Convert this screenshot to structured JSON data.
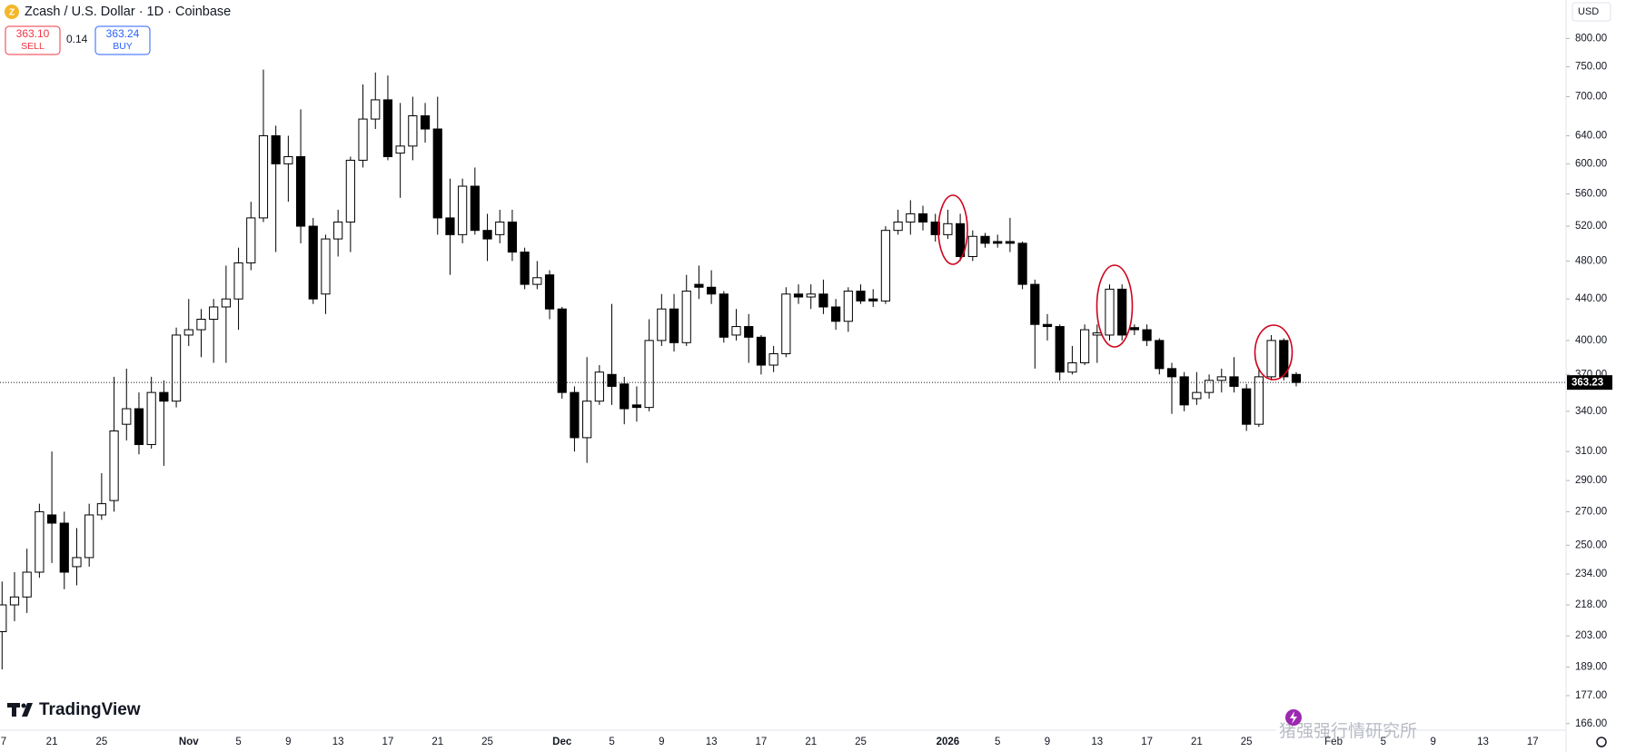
{
  "header": {
    "title": "Zcash / U.S. Dollar · 1D · Coinbase",
    "sell_price": "363.10",
    "sell_label": "SELL",
    "spread": "0.14",
    "buy_price": "363.24",
    "buy_label": "BUY",
    "currency": "USD"
  },
  "branding": {
    "logo_text": "TradingView",
    "watermark": "猪强强行情研究所"
  },
  "chart_data": {
    "type": "candlestick",
    "log_scale": true,
    "grid": false,
    "colors": {
      "up": "#ffffff",
      "down": "#000000",
      "border": "#000000"
    },
    "ylim": [
      163.5,
      874
    ],
    "yticks": [
      {
        "value": 800,
        "label": "800.00"
      },
      {
        "value": 750,
        "label": "750.00"
      },
      {
        "value": 700,
        "label": "700.00"
      },
      {
        "value": 640,
        "label": "640.00"
      },
      {
        "value": 600,
        "label": "600.00"
      },
      {
        "value": 560,
        "label": "560.00"
      },
      {
        "value": 520,
        "label": "520.00"
      },
      {
        "value": 480,
        "label": "480.00"
      },
      {
        "value": 440,
        "label": "440.00"
      },
      {
        "value": 400,
        "label": "400.00"
      },
      {
        "value": 370,
        "label": "370.00"
      },
      {
        "value": 340,
        "label": "340.00"
      },
      {
        "value": 310,
        "label": "310.00"
      },
      {
        "value": 290,
        "label": "290.00"
      },
      {
        "value": 270,
        "label": "270.00"
      },
      {
        "value": 250,
        "label": "250.00"
      },
      {
        "value": 234,
        "label": "234.00"
      },
      {
        "value": 218,
        "label": "218.00"
      },
      {
        "value": 203,
        "label": "203.00"
      },
      {
        "value": 189,
        "label": "189.00"
      },
      {
        "value": 177,
        "label": "177.00"
      },
      {
        "value": 166,
        "label": "166.00"
      }
    ],
    "last_price": 363.23,
    "categories": [
      "7",
      null,
      null,
      null,
      "21",
      null,
      null,
      null,
      "25",
      null,
      null,
      null,
      null,
      null,
      null,
      "Nov",
      null,
      null,
      null,
      "5",
      null,
      null,
      null,
      "9",
      null,
      null,
      null,
      "13",
      null,
      null,
      null,
      "17",
      null,
      null,
      null,
      "21",
      null,
      null,
      null,
      "25",
      null,
      null,
      null,
      null,
      null,
      "Dec",
      null,
      null,
      null,
      "5",
      null,
      null,
      null,
      "9",
      null,
      null,
      null,
      "13",
      null,
      null,
      null,
      "17",
      null,
      null,
      null,
      "21",
      null,
      null,
      null,
      "25",
      null,
      null,
      null,
      null,
      null,
      null,
      "2026",
      null,
      null,
      null,
      "5",
      null,
      null,
      null,
      "9",
      null,
      null,
      null,
      "13",
      null,
      null,
      null,
      "17",
      null,
      null,
      null,
      "21",
      null,
      null,
      null,
      "25",
      null,
      null,
      null,
      null
    ],
    "future_labels": [
      "Feb",
      "5",
      "9",
      "13",
      "17"
    ],
    "open": [
      205,
      218,
      222,
      235,
      268,
      263,
      238,
      243,
      268,
      277,
      330,
      342,
      315,
      355,
      348,
      405,
      410,
      420,
      432,
      440,
      478,
      530,
      640,
      600,
      610,
      520,
      445,
      505,
      525,
      605,
      665,
      695,
      615,
      625,
      670,
      650,
      530,
      510,
      570,
      515,
      510,
      525,
      490,
      455,
      465,
      430,
      355,
      320,
      348,
      370,
      362,
      345,
      343,
      400,
      430,
      398,
      455,
      452,
      445,
      405,
      413,
      403,
      378,
      388,
      445,
      442,
      445,
      432,
      418,
      448,
      440,
      438,
      515,
      525,
      535,
      525,
      510,
      523,
      485,
      508,
      502,
      502,
      500,
      455,
      415,
      413,
      372,
      380,
      405,
      405,
      450,
      412,
      410,
      400,
      375,
      368,
      350,
      355,
      365,
      368,
      358,
      330,
      368,
      400,
      370
    ],
    "high": [
      230,
      235,
      248,
      275,
      310,
      270,
      260,
      275,
      295,
      368,
      375,
      355,
      368,
      365,
      412,
      440,
      430,
      440,
      475,
      495,
      550,
      745,
      655,
      640,
      680,
      530,
      510,
      540,
      610,
      720,
      740,
      735,
      690,
      700,
      690,
      700,
      580,
      580,
      595,
      535,
      540,
      540,
      495,
      480,
      470,
      432,
      360,
      385,
      378,
      435,
      368,
      360,
      420,
      445,
      445,
      465,
      475,
      470,
      448,
      430,
      425,
      405,
      395,
      452,
      455,
      455,
      460,
      440,
      452,
      455,
      450,
      520,
      540,
      552,
      545,
      535,
      540,
      535,
      515,
      512,
      510,
      530,
      502,
      460,
      425,
      415,
      395,
      415,
      415,
      455,
      455,
      415,
      415,
      402,
      380,
      372,
      372,
      370,
      375,
      385,
      362,
      375,
      405,
      402,
      372
    ],
    "low": [
      188,
      210,
      214,
      232,
      240,
      226,
      228,
      238,
      265,
      270,
      318,
      308,
      312,
      300,
      343,
      395,
      385,
      380,
      380,
      410,
      470,
      525,
      490,
      550,
      500,
      435,
      425,
      485,
      490,
      595,
      650,
      605,
      555,
      605,
      630,
      510,
      465,
      500,
      510,
      480,
      500,
      480,
      450,
      450,
      420,
      350,
      310,
      302,
      345,
      345,
      330,
      332,
      340,
      395,
      390,
      395,
      440,
      435,
      398,
      400,
      380,
      370,
      372,
      385,
      435,
      430,
      425,
      410,
      408,
      435,
      432,
      435,
      510,
      510,
      515,
      502,
      505,
      480,
      480,
      495,
      495,
      490,
      450,
      375,
      400,
      365,
      370,
      378,
      380,
      400,
      400,
      405,
      395,
      370,
      338,
      340,
      345,
      350,
      355,
      355,
      325,
      328,
      365,
      365,
      360
    ],
    "close": [
      218,
      222,
      235,
      270,
      263,
      235,
      243,
      268,
      275,
      325,
      342,
      315,
      355,
      348,
      405,
      410,
      420,
      432,
      440,
      478,
      530,
      640,
      600,
      610,
      520,
      440,
      505,
      525,
      605,
      665,
      695,
      610,
      625,
      670,
      650,
      530,
      510,
      570,
      515,
      505,
      525,
      490,
      455,
      462,
      430,
      355,
      320,
      348,
      372,
      360,
      342,
      343,
      400,
      430,
      398,
      448,
      452,
      445,
      403,
      413,
      403,
      378,
      388,
      445,
      442,
      445,
      432,
      418,
      448,
      438,
      438,
      515,
      525,
      535,
      525,
      510,
      523,
      485,
      508,
      500,
      500,
      500,
      455,
      415,
      413,
      372,
      380,
      410,
      407,
      450,
      405,
      410,
      400,
      375,
      368,
      345,
      355,
      365,
      368,
      360,
      330,
      368,
      400,
      368,
      363.23
    ]
  }
}
